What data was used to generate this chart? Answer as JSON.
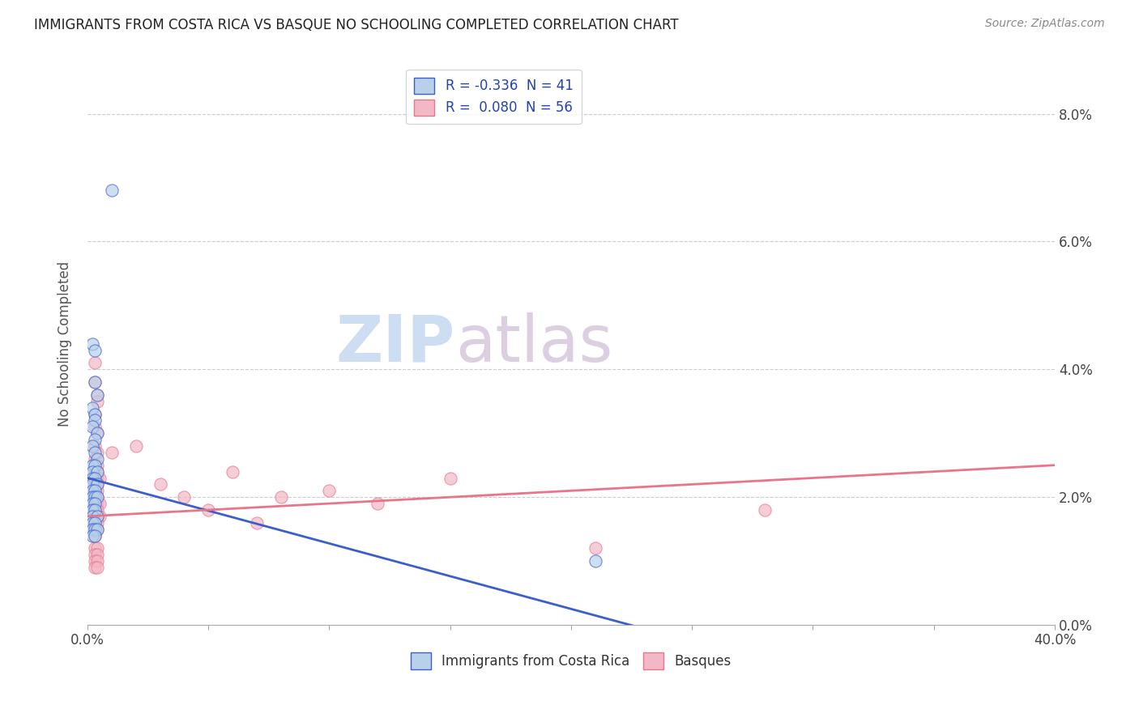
{
  "title": "IMMIGRANTS FROM COSTA RICA VS BASQUE NO SCHOOLING COMPLETED CORRELATION CHART",
  "source": "Source: ZipAtlas.com",
  "ylabel": "No Schooling Completed",
  "xlim": [
    0.0,
    0.4
  ],
  "ylim": [
    0.0,
    0.088
  ],
  "legend1_label": "R = -0.336  N = 41",
  "legend2_label": "R =  0.080  N = 56",
  "legend1_color": "#b8d0ea",
  "legend2_color": "#f2b8c6",
  "line1_color": "#3a5fcd",
  "line2_color": "#e8758a",
  "scatter_blue": [
    [
      0.01,
      0.068
    ],
    [
      0.002,
      0.044
    ],
    [
      0.003,
      0.043
    ],
    [
      0.003,
      0.038
    ],
    [
      0.004,
      0.036
    ],
    [
      0.002,
      0.034
    ],
    [
      0.003,
      0.033
    ],
    [
      0.003,
      0.032
    ],
    [
      0.002,
      0.031
    ],
    [
      0.004,
      0.03
    ],
    [
      0.003,
      0.029
    ],
    [
      0.002,
      0.028
    ],
    [
      0.003,
      0.027
    ],
    [
      0.004,
      0.026
    ],
    [
      0.002,
      0.025
    ],
    [
      0.003,
      0.025
    ],
    [
      0.002,
      0.024
    ],
    [
      0.004,
      0.024
    ],
    [
      0.002,
      0.023
    ],
    [
      0.003,
      0.023
    ],
    [
      0.002,
      0.022
    ],
    [
      0.004,
      0.022
    ],
    [
      0.002,
      0.021
    ],
    [
      0.003,
      0.021
    ],
    [
      0.002,
      0.02
    ],
    [
      0.003,
      0.02
    ],
    [
      0.004,
      0.02
    ],
    [
      0.002,
      0.019
    ],
    [
      0.003,
      0.019
    ],
    [
      0.002,
      0.018
    ],
    [
      0.003,
      0.018
    ],
    [
      0.002,
      0.017
    ],
    [
      0.004,
      0.017
    ],
    [
      0.002,
      0.016
    ],
    [
      0.003,
      0.016
    ],
    [
      0.002,
      0.015
    ],
    [
      0.003,
      0.015
    ],
    [
      0.004,
      0.015
    ],
    [
      0.002,
      0.014
    ],
    [
      0.003,
      0.014
    ],
    [
      0.21,
      0.01
    ]
  ],
  "scatter_pink": [
    [
      0.003,
      0.041
    ],
    [
      0.003,
      0.038
    ],
    [
      0.004,
      0.036
    ],
    [
      0.004,
      0.035
    ],
    [
      0.003,
      0.033
    ],
    [
      0.003,
      0.031
    ],
    [
      0.004,
      0.03
    ],
    [
      0.003,
      0.028
    ],
    [
      0.004,
      0.027
    ],
    [
      0.01,
      0.027
    ],
    [
      0.003,
      0.026
    ],
    [
      0.004,
      0.025
    ],
    [
      0.003,
      0.024
    ],
    [
      0.004,
      0.024
    ],
    [
      0.06,
      0.024
    ],
    [
      0.003,
      0.023
    ],
    [
      0.004,
      0.023
    ],
    [
      0.005,
      0.023
    ],
    [
      0.003,
      0.022
    ],
    [
      0.004,
      0.022
    ],
    [
      0.003,
      0.021
    ],
    [
      0.004,
      0.021
    ],
    [
      0.003,
      0.02
    ],
    [
      0.004,
      0.02
    ],
    [
      0.003,
      0.019
    ],
    [
      0.004,
      0.019
    ],
    [
      0.005,
      0.019
    ],
    [
      0.003,
      0.018
    ],
    [
      0.004,
      0.018
    ],
    [
      0.003,
      0.017
    ],
    [
      0.004,
      0.017
    ],
    [
      0.005,
      0.017
    ],
    [
      0.003,
      0.016
    ],
    [
      0.004,
      0.016
    ],
    [
      0.003,
      0.015
    ],
    [
      0.004,
      0.015
    ],
    [
      0.003,
      0.014
    ],
    [
      0.1,
      0.021
    ],
    [
      0.15,
      0.023
    ],
    [
      0.05,
      0.018
    ],
    [
      0.08,
      0.02
    ],
    [
      0.12,
      0.019
    ],
    [
      0.02,
      0.028
    ],
    [
      0.03,
      0.022
    ],
    [
      0.04,
      0.02
    ],
    [
      0.07,
      0.016
    ],
    [
      0.28,
      0.018
    ],
    [
      0.003,
      0.012
    ],
    [
      0.004,
      0.012
    ],
    [
      0.003,
      0.011
    ],
    [
      0.004,
      0.011
    ],
    [
      0.003,
      0.01
    ],
    [
      0.004,
      0.01
    ],
    [
      0.003,
      0.009
    ],
    [
      0.004,
      0.009
    ],
    [
      0.21,
      0.012
    ]
  ]
}
